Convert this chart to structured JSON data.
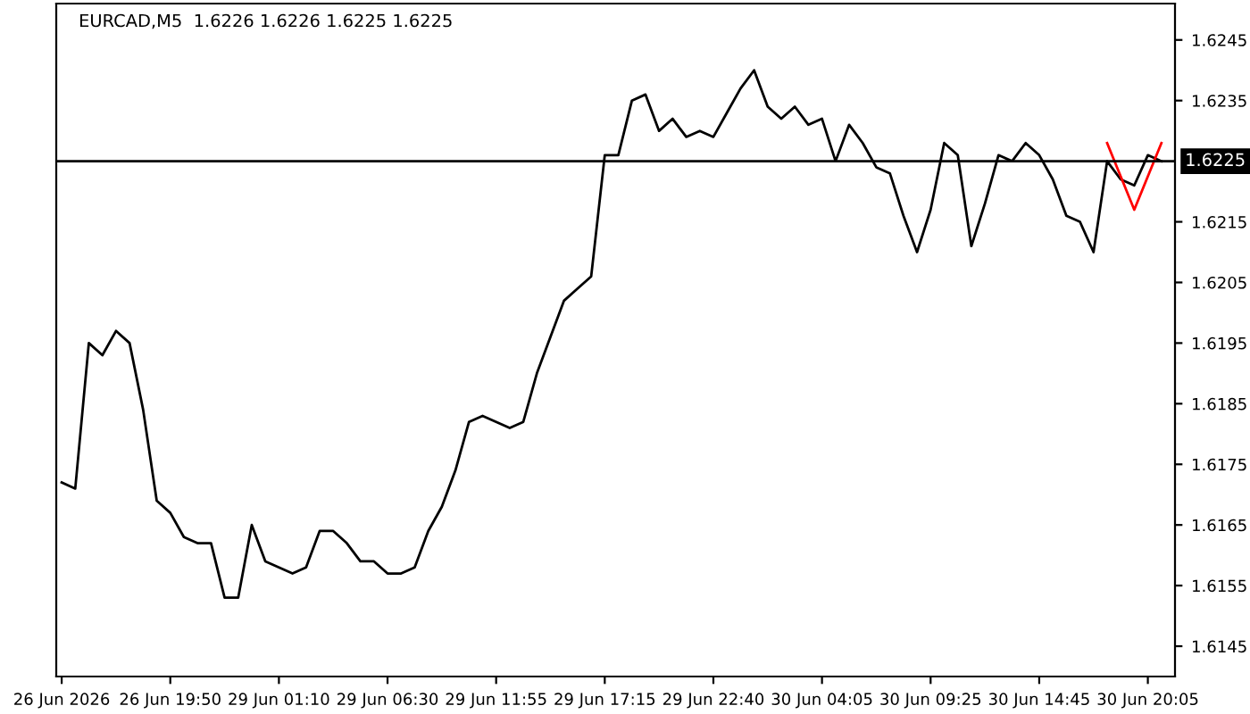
{
  "chart_data": {
    "type": "line",
    "title": "EURCAD,M5  1.6226 1.6226 1.6225 1.6225",
    "categories": [
      "26 Jun 2026",
      null,
      null,
      null,
      null,
      null,
      null,
      null,
      "26 Jun 19:50",
      null,
      null,
      null,
      null,
      null,
      null,
      null,
      "29 Jun 01:10",
      null,
      null,
      null,
      null,
      null,
      null,
      null,
      "29 Jun 06:30",
      null,
      null,
      null,
      null,
      null,
      null,
      null,
      "29 Jun 11:55",
      null,
      null,
      null,
      null,
      null,
      null,
      null,
      "29 Jun 17:15",
      null,
      null,
      null,
      null,
      null,
      null,
      null,
      "29 Jun 22:40",
      null,
      null,
      null,
      null,
      null,
      null,
      null,
      "30 Jun 04:05",
      null,
      null,
      null,
      null,
      null,
      null,
      null,
      "30 Jun 09:25",
      null,
      null,
      null,
      null,
      null,
      null,
      null,
      "30 Jun 14:45",
      null,
      null,
      null,
      null,
      null,
      null,
      null,
      "30 Jun 20:05",
      null,
      null
    ],
    "series": [
      {
        "color": "#000000",
        "values": [
          1.6172,
          1.6171,
          1.6195,
          1.6193,
          1.6197,
          1.6195,
          1.6184,
          1.6169,
          1.6167,
          1.6163,
          1.6162,
          1.6162,
          1.6153,
          1.6153,
          1.6165,
          1.6159,
          1.6158,
          1.6157,
          1.6158,
          1.6164,
          1.6164,
          1.6162,
          1.6159,
          1.6159,
          1.6157,
          1.6157,
          1.6158,
          1.6164,
          1.6168,
          1.6174,
          1.6182,
          1.6183,
          1.6182,
          1.6181,
          1.6182,
          1.619,
          1.6196,
          1.6202,
          1.6204,
          1.6206,
          1.6226,
          1.6226,
          1.6235,
          1.6236,
          1.623,
          1.6232,
          1.6229,
          1.623,
          1.6229,
          1.6233,
          1.6237,
          1.624,
          1.6234,
          1.6232,
          1.6234,
          1.6231,
          1.6232,
          1.6225,
          1.6231,
          1.6228,
          1.6224,
          1.6223,
          1.6216,
          1.621,
          1.6217,
          1.6228,
          1.6226,
          1.6211,
          1.6218,
          1.6226,
          1.6225,
          1.6228,
          1.6226,
          1.6222,
          1.6216,
          1.6215,
          1.621,
          1.6225,
          1.6222,
          1.6221,
          1.6226,
          1.6225,
          null
        ]
      },
      {
        "color": "#ff0000",
        "values": [
          null,
          null,
          null,
          null,
          null,
          null,
          null,
          null,
          null,
          null,
          null,
          null,
          null,
          null,
          null,
          null,
          null,
          null,
          null,
          null,
          null,
          null,
          null,
          null,
          null,
          null,
          null,
          null,
          null,
          null,
          null,
          null,
          null,
          null,
          null,
          null,
          null,
          null,
          null,
          null,
          null,
          null,
          null,
          null,
          null,
          null,
          null,
          null,
          null,
          null,
          null,
          null,
          null,
          null,
          null,
          null,
          null,
          null,
          null,
          null,
          null,
          null,
          null,
          null,
          null,
          null,
          null,
          null,
          null,
          null,
          null,
          null,
          null,
          null,
          null,
          null,
          null,
          1.6228,
          null,
          1.6217,
          null,
          1.6228,
          null
        ]
      }
    ],
    "ylim": [
      1.614,
      1.6251
    ],
    "yticks": [
      1.6145,
      1.6155,
      1.6165,
      1.6175,
      1.6185,
      1.6195,
      1.6205,
      1.6215,
      1.6235,
      1.6245
    ],
    "ref_lines": [
      {
        "axis": "y",
        "value": 1.6225,
        "label": "1.6225",
        "color": "#000000"
      }
    ],
    "grid": false,
    "legend": false,
    "marker": "none",
    "line_style": "solid"
  }
}
